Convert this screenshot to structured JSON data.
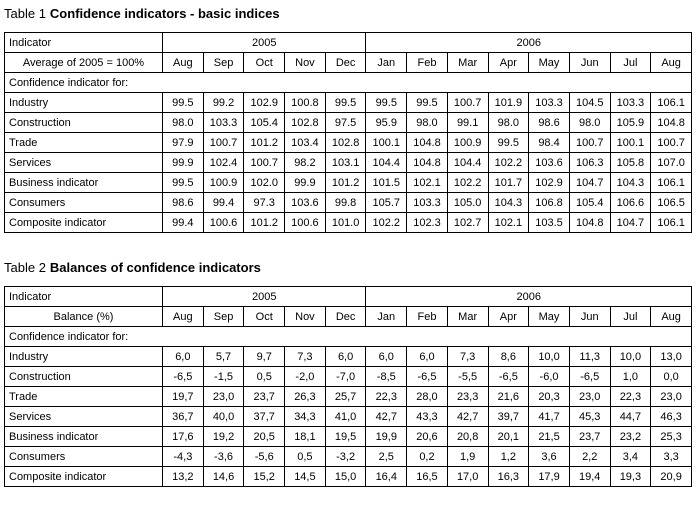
{
  "table1": {
    "label": "Table 1",
    "title": "Confidence indicators - basic indices",
    "header": {
      "indicator": "Indicator",
      "years": [
        "2005",
        "2006"
      ],
      "unit": "Average of 2005 = 100%",
      "months": [
        "Aug",
        "Sep",
        "Oct",
        "Nov",
        "Dec",
        "Jan",
        "Feb",
        "Mar",
        "Apr",
        "May",
        "Jun",
        "Jul",
        "Aug"
      ]
    },
    "section": "Confidence indicator for:",
    "rows": [
      {
        "name": "Industry",
        "values": [
          "99.5",
          "99.2",
          "102.9",
          "100.8",
          "99.5",
          "99.5",
          "99.5",
          "100.7",
          "101.9",
          "103.3",
          "104.5",
          "103.3",
          "106.1"
        ]
      },
      {
        "name": "Construction",
        "values": [
          "98.0",
          "103.3",
          "105.4",
          "102.8",
          "97.5",
          "95.9",
          "98.0",
          "99.1",
          "98.0",
          "98.6",
          "98.0",
          "105.9",
          "104.8"
        ]
      },
      {
        "name": "Trade",
        "values": [
          "97.9",
          "100.7",
          "101.2",
          "103.4",
          "102.8",
          "100.1",
          "104.8",
          "100.9",
          "99.5",
          "98.4",
          "100.7",
          "100.1",
          "100.7"
        ]
      },
      {
        "name": "Services",
        "values": [
          "99.9",
          "102.4",
          "100.7",
          "98.2",
          "103.1",
          "104.4",
          "104.8",
          "104.4",
          "102.2",
          "103.6",
          "106.3",
          "105.8",
          "107.0"
        ]
      },
      {
        "name": "Business indicator",
        "values": [
          "99.5",
          "100.9",
          "102.0",
          "99.9",
          "101.2",
          "101.5",
          "102.1",
          "102.2",
          "101.7",
          "102.9",
          "104.7",
          "104.3",
          "106.1"
        ]
      },
      {
        "name": "Consumers",
        "values": [
          "98.6",
          "99.4",
          "97.3",
          "103.6",
          "99.8",
          "105.7",
          "103.3",
          "105.0",
          "104.3",
          "106.8",
          "105.4",
          "106.6",
          "106.5"
        ]
      },
      {
        "name": "Composite indicator",
        "values": [
          "99.4",
          "100.6",
          "101.2",
          "100.6",
          "101.0",
          "102.2",
          "102.3",
          "102.7",
          "102.1",
          "103.5",
          "104.8",
          "104.7",
          "106.1"
        ]
      }
    ]
  },
  "table2": {
    "label": "Table 2",
    "title": "Balances of confidence indicators",
    "header": {
      "indicator": "Indicator",
      "years": [
        "2005",
        "2006"
      ],
      "unit": "Balance (%)",
      "months": [
        "Aug",
        "Sep",
        "Oct",
        "Nov",
        "Dec",
        "Jan",
        "Feb",
        "Mar",
        "Apr",
        "May",
        "Jun",
        "Jul",
        "Aug"
      ]
    },
    "section": "Confidence indicator for:",
    "rows": [
      {
        "name": "Industry",
        "values": [
          "6,0",
          "5,7",
          "9,7",
          "7,3",
          "6,0",
          "6,0",
          "6,0",
          "7,3",
          "8,6",
          "10,0",
          "11,3",
          "10,0",
          "13,0"
        ]
      },
      {
        "name": "Construction",
        "values": [
          "-6,5",
          "-1,5",
          "0,5",
          "-2,0",
          "-7,0",
          "-8,5",
          "-6,5",
          "-5,5",
          "-6,5",
          "-6,0",
          "-6,5",
          "1,0",
          "0,0"
        ]
      },
      {
        "name": "Trade",
        "values": [
          "19,7",
          "23,0",
          "23,7",
          "26,3",
          "25,7",
          "22,3",
          "28,0",
          "23,3",
          "21,6",
          "20,3",
          "23,0",
          "22,3",
          "23,0"
        ]
      },
      {
        "name": "Services",
        "values": [
          "36,7",
          "40,0",
          "37,7",
          "34,3",
          "41,0",
          "42,7",
          "43,3",
          "42,7",
          "39,7",
          "41,7",
          "45,3",
          "44,7",
          "46,3"
        ]
      },
      {
        "name": "Business indicator",
        "values": [
          "17,6",
          "19,2",
          "20,5",
          "18,1",
          "19,5",
          "19,9",
          "20,6",
          "20,8",
          "20,1",
          "21,5",
          "23,7",
          "23,2",
          "25,3"
        ]
      },
      {
        "name": "Consumers",
        "values": [
          "-4,3",
          "-3,6",
          "-5,6",
          "0,5",
          "-3,2",
          "2,5",
          "0,2",
          "1,9",
          "1,2",
          "3,6",
          "2,2",
          "3,4",
          "3,3"
        ]
      },
      {
        "name": "Composite indicator",
        "values": [
          "13,2",
          "14,6",
          "15,2",
          "14,5",
          "15,0",
          "16,4",
          "16,5",
          "17,0",
          "16,3",
          "17,9",
          "19,4",
          "19,3",
          "20,9"
        ]
      }
    ]
  }
}
